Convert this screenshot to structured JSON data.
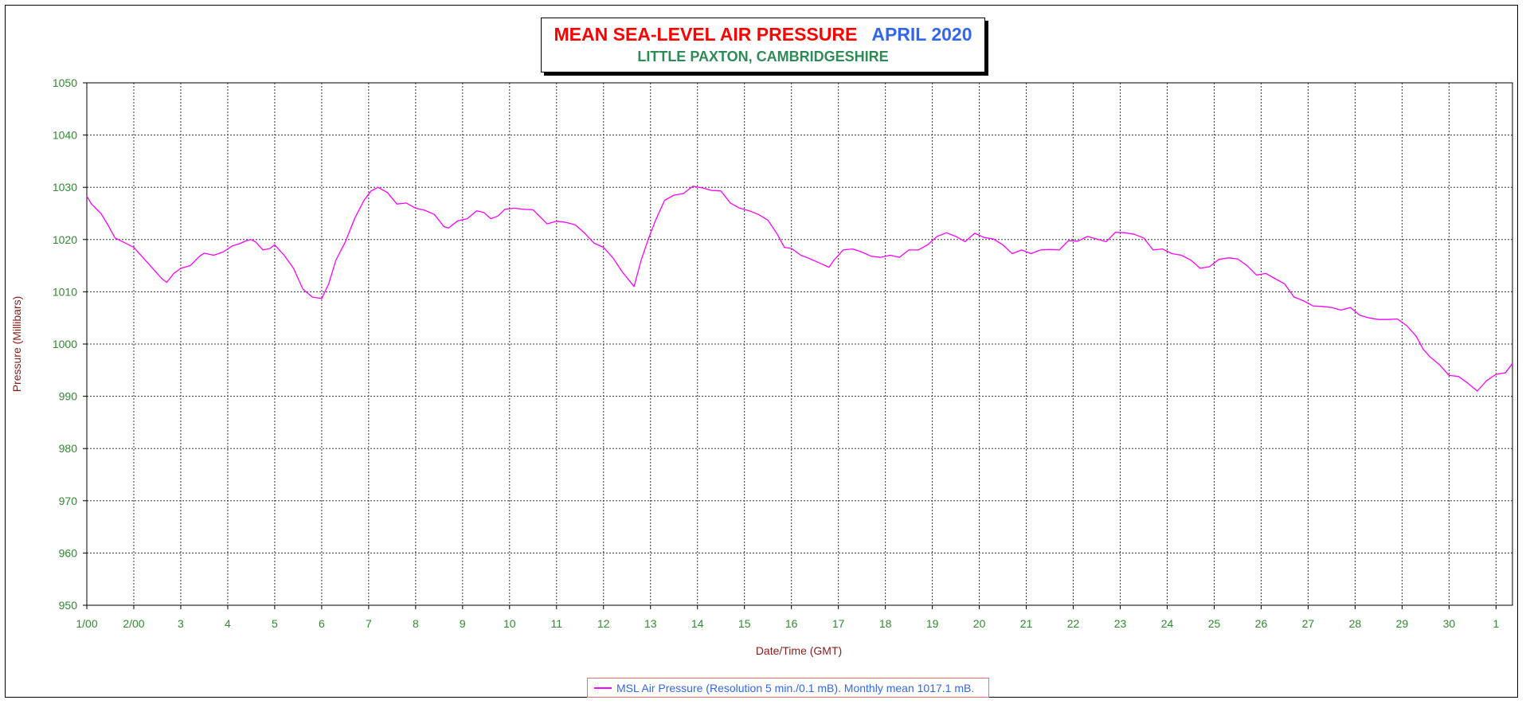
{
  "chart_data": {
    "type": "line",
    "title": "MEAN SEA-LEVEL AIR PRESSURE",
    "title_period": "APRIL 2020",
    "subtitle": "LITTLE PAXTON, CAMBRIDGESHIRE",
    "xlabel": "Date/Time (GMT)",
    "ylabel": "Pressure (Millibars)",
    "ylim": [
      950,
      1050
    ],
    "yticks": [
      950,
      960,
      970,
      980,
      990,
      1000,
      1010,
      1020,
      1030,
      1040,
      1050
    ],
    "xlim": [
      1,
      31.35
    ],
    "xticks": [
      {
        "day": 1,
        "label": "1/00"
      },
      {
        "day": 2,
        "label": "2/00"
      },
      {
        "day": 3,
        "label": "3"
      },
      {
        "day": 4,
        "label": "4"
      },
      {
        "day": 5,
        "label": "5"
      },
      {
        "day": 6,
        "label": "6"
      },
      {
        "day": 7,
        "label": "7"
      },
      {
        "day": 8,
        "label": "8"
      },
      {
        "day": 9,
        "label": "9"
      },
      {
        "day": 10,
        "label": "10"
      },
      {
        "day": 11,
        "label": "11"
      },
      {
        "day": 12,
        "label": "12"
      },
      {
        "day": 13,
        "label": "13"
      },
      {
        "day": 14,
        "label": "14"
      },
      {
        "day": 15,
        "label": "15"
      },
      {
        "day": 16,
        "label": "16"
      },
      {
        "day": 17,
        "label": "17"
      },
      {
        "day": 18,
        "label": "18"
      },
      {
        "day": 19,
        "label": "19"
      },
      {
        "day": 20,
        "label": "20"
      },
      {
        "day": 21,
        "label": "21"
      },
      {
        "day": 22,
        "label": "22"
      },
      {
        "day": 23,
        "label": "23"
      },
      {
        "day": 24,
        "label": "24"
      },
      {
        "day": 25,
        "label": "25"
      },
      {
        "day": 26,
        "label": "26"
      },
      {
        "day": 27,
        "label": "27"
      },
      {
        "day": 28,
        "label": "28"
      },
      {
        "day": 29,
        "label": "29"
      },
      {
        "day": 30,
        "label": "30"
      },
      {
        "day": 31,
        "label": "1"
      }
    ],
    "grid": true,
    "legend_position": "bottom-center",
    "series": [
      {
        "name": "MSL Air Pressure (Resolution 5 min./0.1 mB). Monthly mean 1017.1 mB.",
        "color": "#ff00ff",
        "x": [
          1.0,
          1.1,
          1.3,
          1.45,
          1.6,
          1.8,
          2.0,
          2.2,
          2.4,
          2.6,
          2.7,
          2.85,
          3.0,
          3.2,
          3.4,
          3.5,
          3.7,
          3.9,
          4.1,
          4.25,
          4.4,
          4.5,
          4.6,
          4.75,
          4.9,
          5.0,
          5.2,
          5.4,
          5.6,
          5.8,
          6.0,
          6.15,
          6.3,
          6.5,
          6.7,
          6.9,
          7.05,
          7.2,
          7.4,
          7.6,
          7.8,
          8.0,
          8.2,
          8.4,
          8.6,
          8.7,
          8.9,
          9.1,
          9.3,
          9.45,
          9.6,
          9.75,
          9.9,
          10.1,
          10.3,
          10.5,
          10.6,
          10.8,
          11.0,
          11.2,
          11.4,
          11.6,
          11.8,
          12.0,
          12.2,
          12.4,
          12.65,
          12.8,
          12.95,
          13.1,
          13.3,
          13.5,
          13.7,
          13.9,
          14.1,
          14.3,
          14.5,
          14.7,
          14.9,
          15.1,
          15.3,
          15.5,
          15.7,
          15.85,
          16.0,
          16.2,
          16.4,
          16.6,
          16.8,
          16.9,
          17.1,
          17.3,
          17.5,
          17.7,
          17.9,
          18.1,
          18.3,
          18.5,
          18.7,
          18.9,
          19.1,
          19.3,
          19.5,
          19.7,
          19.9,
          20.1,
          20.3,
          20.5,
          20.7,
          20.9,
          21.1,
          21.3,
          21.5,
          21.7,
          21.9,
          22.1,
          22.3,
          22.5,
          22.7,
          22.9,
          23.1,
          23.3,
          23.5,
          23.7,
          23.9,
          24.1,
          24.3,
          24.5,
          24.7,
          24.9,
          25.1,
          25.3,
          25.5,
          25.7,
          25.9,
          26.1,
          26.3,
          26.5,
          26.7,
          26.9,
          27.1,
          27.3,
          27.5,
          27.7,
          27.9,
          28.1,
          28.3,
          28.5,
          28.7,
          28.9,
          29.1,
          29.3,
          29.45,
          29.6,
          29.8,
          30.0,
          30.2,
          30.4,
          30.6,
          30.8,
          31.0,
          31.2,
          31.35
        ],
        "y": [
          1028.3,
          1026.8,
          1025.0,
          1022.8,
          1020.3,
          1019.4,
          1018.5,
          1016.5,
          1014.5,
          1012.5,
          1011.8,
          1013.5,
          1014.5,
          1015.0,
          1016.8,
          1017.4,
          1017.0,
          1017.6,
          1018.8,
          1019.2,
          1019.8,
          1020.0,
          1019.5,
          1018.0,
          1018.3,
          1019.0,
          1017.0,
          1014.5,
          1010.5,
          1009.0,
          1008.7,
          1011.5,
          1016.0,
          1019.5,
          1024.0,
          1027.5,
          1029.3,
          1030.0,
          1029.0,
          1026.8,
          1027.0,
          1026.0,
          1025.6,
          1024.8,
          1022.5,
          1022.2,
          1023.6,
          1024.0,
          1025.5,
          1025.2,
          1024.0,
          1024.5,
          1025.8,
          1026.0,
          1025.8,
          1025.7,
          1024.8,
          1023.0,
          1023.5,
          1023.3,
          1022.8,
          1021.2,
          1019.3,
          1018.5,
          1016.5,
          1013.8,
          1011.0,
          1016.0,
          1020.0,
          1023.5,
          1027.5,
          1028.5,
          1028.8,
          1030.2,
          1029.9,
          1029.4,
          1029.3,
          1027.0,
          1026.0,
          1025.5,
          1024.8,
          1023.7,
          1021.0,
          1018.5,
          1018.3,
          1017.0,
          1016.3,
          1015.5,
          1014.7,
          1016.0,
          1018.0,
          1018.2,
          1017.6,
          1016.8,
          1016.6,
          1017.0,
          1016.6,
          1018.0,
          1018.0,
          1019.0,
          1020.6,
          1021.3,
          1020.6,
          1019.6,
          1021.2,
          1020.4,
          1020.1,
          1019.0,
          1017.3,
          1018.0,
          1017.3,
          1018.0,
          1018.1,
          1018.0,
          1019.8,
          1019.7,
          1020.6,
          1020.1,
          1019.6,
          1021.4,
          1021.3,
          1021.0,
          1020.3,
          1018.0,
          1018.2,
          1017.3,
          1017.0,
          1016.1,
          1014.5,
          1014.8,
          1016.2,
          1016.5,
          1016.3,
          1015.0,
          1013.2,
          1013.5,
          1012.5,
          1011.5,
          1009.0,
          1008.3,
          1007.3,
          1007.2,
          1007.0,
          1006.5,
          1007.0,
          1005.5,
          1005.0,
          1004.7,
          1004.7,
          1004.8,
          1003.5,
          1001.5,
          999.0,
          997.5,
          996.0,
          994.0,
          993.8,
          992.5,
          991.0,
          993.0,
          994.2,
          994.5,
          996.3
        ]
      }
    ]
  }
}
